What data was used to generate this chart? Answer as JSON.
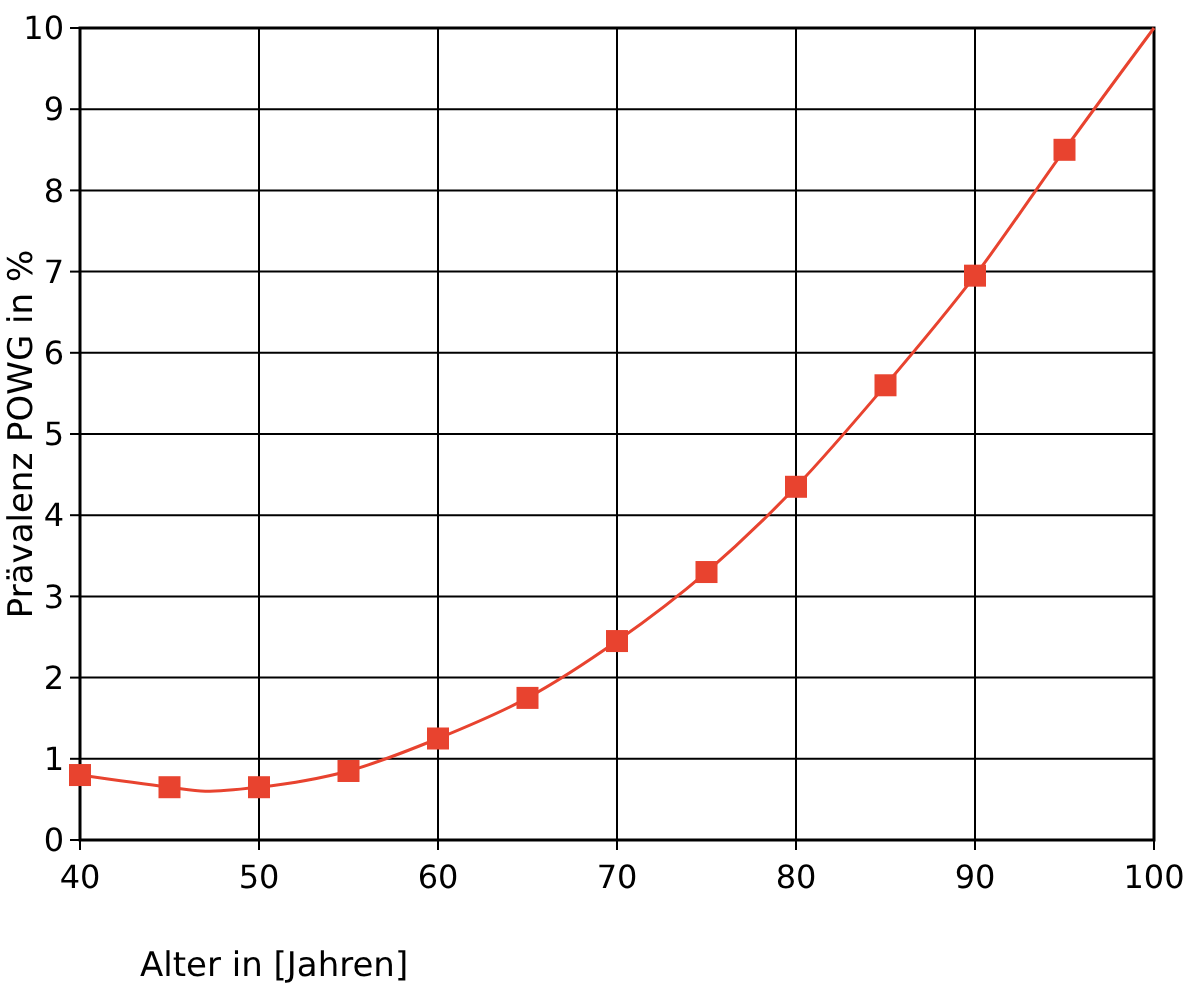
{
  "chart_data": {
    "type": "line",
    "xlabel": "Alter in [Jahren]",
    "ylabel": "Prävalenz POWG in %",
    "xlim": [
      40,
      100
    ],
    "xticks": [
      40,
      50,
      60,
      70,
      80,
      90,
      100
    ],
    "ylim": [
      0,
      10
    ],
    "yticks": [
      0,
      1,
      2,
      3,
      4,
      5,
      6,
      7,
      8,
      9,
      10
    ],
    "grid": true,
    "line_style": "solid",
    "series": [
      {
        "marker": "none",
        "color": "#e8432f",
        "x": [
          40,
          45,
          47,
          50,
          55,
          60,
          65,
          70,
          75,
          80,
          85,
          90,
          95,
          100
        ],
        "values": [
          0.8,
          0.65,
          0.6,
          0.65,
          0.85,
          1.25,
          1.75,
          2.45,
          3.3,
          4.35,
          5.6,
          6.95,
          8.5,
          10
        ]
      },
      {
        "type": "scatter",
        "marker": "square",
        "color": "#e8432f",
        "x": [
          40,
          45,
          50,
          55,
          60,
          65,
          70,
          75,
          80,
          85,
          90,
          95
        ],
        "values": [
          0.8,
          0.65,
          0.65,
          0.85,
          1.25,
          1.75,
          2.45,
          3.3,
          4.35,
          5.6,
          6.95,
          8.5
        ]
      }
    ]
  }
}
